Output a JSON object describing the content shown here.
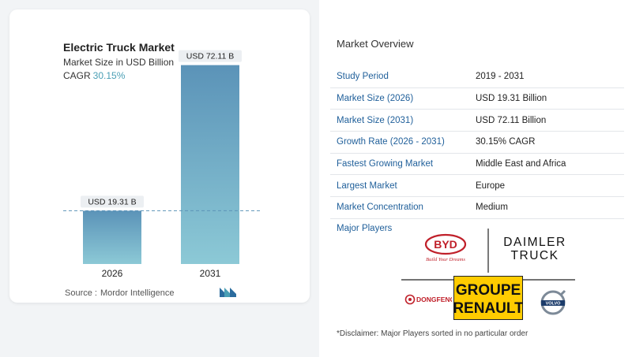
{
  "header": {
    "title": "Electric Truck Market",
    "subtitle": "Market Size in USD Billion",
    "cagr_label": "CAGR",
    "cagr_value": "30.15%"
  },
  "chart_data": {
    "type": "bar",
    "categories": [
      "2026",
      "2031"
    ],
    "values": [
      19.31,
      72.11
    ],
    "data_labels": [
      "USD 19.31 B",
      "USD 72.11 B"
    ],
    "ylim": [
      0,
      80
    ],
    "grid": false,
    "colors": {
      "bar_top": "#5b93b8",
      "bar_bottom": "#8cc9d6"
    }
  },
  "source": {
    "label": "Source :",
    "value": "Mordor Intelligence"
  },
  "overview": {
    "title": "Market Overview",
    "rows": [
      {
        "key": "Study Period",
        "value": "2019 - 2031"
      },
      {
        "key": "Market Size (2026)",
        "value": "USD 19.31 Billion"
      },
      {
        "key": "Market Size (2031)",
        "value": "USD 72.11 Billion"
      },
      {
        "key": "Growth Rate (2026 - 2031)",
        "value": "30.15% CAGR"
      },
      {
        "key": "Fastest Growing Market",
        "value": "Middle East and Africa"
      },
      {
        "key": "Largest Market",
        "value": "Europe"
      },
      {
        "key": "Market Concentration",
        "value": "Medium"
      }
    ],
    "players_label": "Major Players",
    "players": {
      "byd": "BYD",
      "byd_tagline": "Build Your Dreams",
      "daimler_line1": "DAIMLER",
      "daimler_line2": "TRUCK",
      "renault_line1": "GROUPE",
      "renault_line2": "RENAULT",
      "dongfeng": "DONGFENG",
      "volvo": "VOLVO"
    },
    "disclaimer": "*Disclaimer: Major Players sorted in no particular order"
  },
  "colors": {
    "accent": "#4a9fb5",
    "key_text": "#1f5f9a"
  }
}
